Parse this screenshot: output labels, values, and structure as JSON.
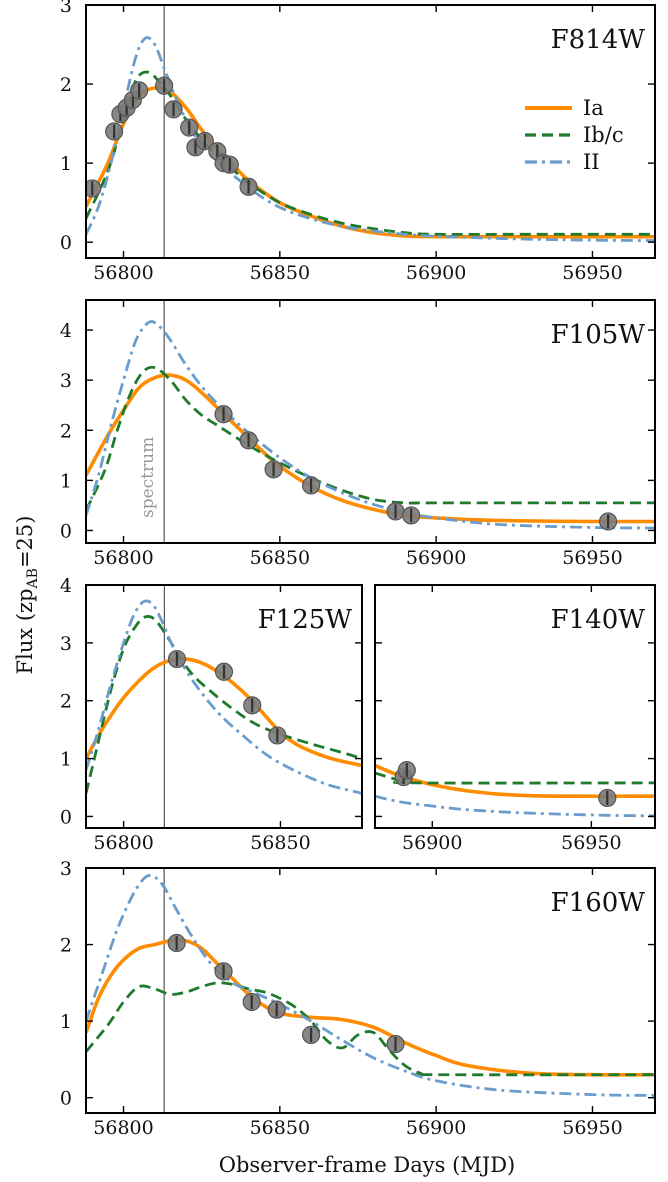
{
  "figure": {
    "ylabel_main": "Flux (zp",
    "ylabel_sub": "AB",
    "ylabel_tail": "=25)",
    "xlabel": "Observer-frame Days (MJD)",
    "spectrum_label": "spectrum",
    "spectrum_mjd": 56813,
    "legend": [
      {
        "label": "Ia",
        "color": "#ff8c00",
        "style": "solid"
      },
      {
        "label": "Ib/c",
        "color": "#1e7b2e",
        "style": "dashed"
      },
      {
        "label": "II",
        "color": "#6a9ccc",
        "style": "dashdot"
      }
    ],
    "point_color": "#7a7a7a"
  },
  "chart_data": [
    {
      "type": "line",
      "title": "F814W",
      "xlim": [
        56788,
        56970
      ],
      "ylim": [
        -0.2,
        3.0
      ],
      "xticks": [
        56800,
        56850,
        56900,
        56950
      ],
      "yticks": [
        0,
        1,
        2,
        3
      ],
      "legend": "top-right",
      "series": [
        {
          "name": "Ia",
          "x": [
            56788,
            56795,
            56800,
            56805,
            56810,
            56815,
            56820,
            56825,
            56830,
            56835,
            56840,
            56850,
            56860,
            56870,
            56880,
            56890,
            56900,
            56920,
            56940,
            56970
          ],
          "y": [
            0.45,
            1.0,
            1.5,
            1.85,
            1.95,
            1.9,
            1.7,
            1.42,
            1.18,
            0.98,
            0.78,
            0.5,
            0.33,
            0.2,
            0.12,
            0.08,
            0.07,
            0.07,
            0.07,
            0.07
          ]
        },
        {
          "name": "Ib/c",
          "x": [
            56788,
            56795,
            56800,
            56804,
            56808,
            56812,
            56816,
            56820,
            56825,
            56830,
            56835,
            56840,
            56850,
            56860,
            56870,
            56880,
            56890,
            56900,
            56930,
            56970
          ],
          "y": [
            0.3,
            0.9,
            1.55,
            2.05,
            2.15,
            2.0,
            1.8,
            1.55,
            1.3,
            1.1,
            0.92,
            0.75,
            0.5,
            0.35,
            0.24,
            0.17,
            0.12,
            0.1,
            0.1,
            0.1
          ]
        },
        {
          "name": "II",
          "x": [
            56788,
            56792,
            56796,
            56800,
            56804,
            56807,
            56810,
            56813,
            56817,
            56822,
            56828,
            56835,
            56845,
            56855,
            56870,
            56890,
            56910,
            56940,
            56970
          ],
          "y": [
            0.1,
            0.45,
            1.0,
            1.7,
            2.35,
            2.58,
            2.5,
            2.2,
            1.8,
            1.4,
            1.1,
            0.85,
            0.55,
            0.36,
            0.2,
            0.1,
            0.06,
            0.03,
            0.02
          ]
        }
      ],
      "points": {
        "x": [
          56790,
          56797,
          56799,
          56801,
          56803,
          56805,
          56813,
          56816,
          56821,
          56823,
          56826,
          56830,
          56832,
          56834,
          56840
        ],
        "y": [
          0.68,
          1.4,
          1.62,
          1.7,
          1.8,
          1.92,
          1.98,
          1.68,
          1.45,
          1.2,
          1.28,
          1.15,
          1.0,
          0.98,
          0.7
        ]
      }
    },
    {
      "type": "line",
      "title": "F105W",
      "xlim": [
        56788,
        56970
      ],
      "ylim": [
        -0.25,
        4.6
      ],
      "xticks": [
        56800,
        56850,
        56900,
        56950
      ],
      "yticks": [
        0,
        1,
        2,
        3,
        4
      ],
      "series": [
        {
          "name": "Ia",
          "x": [
            56788,
            56795,
            56800,
            56805,
            56810,
            56815,
            56820,
            56825,
            56830,
            56835,
            56840,
            56845,
            56850,
            56860,
            56870,
            56880,
            56890,
            56900,
            56920,
            56950,
            56970
          ],
          "y": [
            1.1,
            1.9,
            2.4,
            2.85,
            3.05,
            3.1,
            3.0,
            2.75,
            2.45,
            2.15,
            1.85,
            1.55,
            1.28,
            0.88,
            0.6,
            0.42,
            0.3,
            0.25,
            0.2,
            0.18,
            0.18
          ]
        },
        {
          "name": "Ib/c",
          "x": [
            56788,
            56794,
            56798,
            56802,
            56806,
            56810,
            56815,
            56820,
            56825,
            56830,
            56840,
            56850,
            56860,
            56870,
            56880,
            56890,
            56900,
            56970
          ],
          "y": [
            0.4,
            1.2,
            2.0,
            2.7,
            3.15,
            3.25,
            3.0,
            2.6,
            2.3,
            2.1,
            1.7,
            1.35,
            1.05,
            0.8,
            0.62,
            0.55,
            0.55,
            0.55
          ]
        },
        {
          "name": "II",
          "x": [
            56788,
            56792,
            56796,
            56800,
            56804,
            56808,
            56811,
            56815,
            56820,
            56826,
            56833,
            56840,
            56850,
            56860,
            56870,
            56880,
            56890,
            56900,
            56920,
            56950,
            56970
          ],
          "y": [
            0.3,
            1.1,
            2.1,
            3.0,
            3.8,
            4.15,
            4.1,
            3.8,
            3.3,
            2.8,
            2.35,
            1.95,
            1.45,
            1.05,
            0.75,
            0.52,
            0.36,
            0.25,
            0.12,
            0.06,
            0.05
          ]
        }
      ],
      "points": {
        "x": [
          56832,
          56840,
          56848,
          56860,
          56887,
          56892,
          56955
        ],
        "y": [
          2.32,
          1.8,
          1.22,
          0.9,
          0.38,
          0.3,
          0.18
        ]
      }
    },
    {
      "type": "line",
      "title": "F125W",
      "xlim": [
        56788,
        56876
      ],
      "ylim": [
        -0.2,
        4.0
      ],
      "xticks": [
        56800,
        56850
      ],
      "yticks": [
        0,
        1,
        2,
        3,
        4
      ],
      "series": [
        {
          "name": "Ia",
          "x": [
            56788,
            56792,
            56796,
            56800,
            56805,
            56810,
            56815,
            56820,
            56825,
            56830,
            56835,
            56840,
            56845,
            56850,
            56855,
            56860,
            56865,
            56870,
            56876
          ],
          "y": [
            1.0,
            1.4,
            1.75,
            2.05,
            2.35,
            2.58,
            2.7,
            2.72,
            2.65,
            2.5,
            2.3,
            2.05,
            1.75,
            1.45,
            1.25,
            1.12,
            1.02,
            0.95,
            0.88
          ]
        },
        {
          "name": "Ib/c",
          "x": [
            56788,
            56792,
            56796,
            56800,
            56804,
            56807,
            56810,
            56814,
            56818,
            56822,
            56828,
            56835,
            56842,
            56850,
            56860,
            56870,
            56876
          ],
          "y": [
            0.4,
            1.3,
            2.2,
            2.9,
            3.3,
            3.45,
            3.4,
            3.1,
            2.75,
            2.45,
            2.15,
            1.85,
            1.6,
            1.42,
            1.25,
            1.1,
            1.0
          ]
        },
        {
          "name": "II",
          "x": [
            56788,
            56792,
            56796,
            56800,
            56803,
            56806,
            56809,
            56812,
            56816,
            56822,
            56830,
            56838,
            56846,
            56855,
            56865,
            56876
          ],
          "y": [
            0.8,
            1.5,
            2.3,
            3.0,
            3.45,
            3.7,
            3.68,
            3.4,
            2.9,
            2.35,
            1.8,
            1.4,
            1.05,
            0.78,
            0.55,
            0.4
          ]
        }
      ],
      "points": {
        "x": [
          56817,
          56832,
          56841,
          56849
        ],
        "y": [
          2.72,
          2.5,
          1.92,
          1.4
        ]
      }
    },
    {
      "type": "line",
      "title": "F140W",
      "xlim": [
        56882,
        56970
      ],
      "ylim": [
        -0.2,
        4.0
      ],
      "xticks": [
        56900,
        56950
      ],
      "yticks": [
        0,
        1,
        2,
        3,
        4
      ],
      "series": [
        {
          "name": "Ia",
          "x": [
            56882,
            56890,
            56900,
            56910,
            56920,
            56930,
            56940,
            56970
          ],
          "y": [
            0.88,
            0.7,
            0.55,
            0.45,
            0.39,
            0.36,
            0.35,
            0.35
          ]
        },
        {
          "name": "Ib/c",
          "x": [
            56882,
            56890,
            56895,
            56970
          ],
          "y": [
            0.75,
            0.62,
            0.58,
            0.58
          ]
        },
        {
          "name": "II",
          "x": [
            56882,
            56890,
            56900,
            56910,
            56925,
            56940,
            56955,
            56970
          ],
          "y": [
            0.35,
            0.25,
            0.18,
            0.12,
            0.07,
            0.04,
            0.02,
            0.01
          ]
        }
      ],
      "points": {
        "x": [
          56891,
          56892,
          56955
        ],
        "y": [
          0.68,
          0.8,
          0.32
        ]
      }
    },
    {
      "type": "line",
      "title": "F160W",
      "xlim": [
        56788,
        56970
      ],
      "ylim": [
        -0.2,
        3.0
      ],
      "xticks": [
        56800,
        56850,
        56900,
        56950
      ],
      "yticks": [
        0,
        1,
        2,
        3
      ],
      "series": [
        {
          "name": "Ia",
          "x": [
            56788,
            56792,
            56796,
            56800,
            56805,
            56810,
            56815,
            56820,
            56825,
            56830,
            56835,
            56840,
            56845,
            56850,
            56860,
            56870,
            56880,
            56890,
            56900,
            56910,
            56930,
            56950,
            56970
          ],
          "y": [
            0.85,
            1.3,
            1.6,
            1.8,
            1.95,
            2.0,
            2.05,
            2.05,
            1.95,
            1.75,
            1.55,
            1.35,
            1.2,
            1.1,
            1.05,
            1.02,
            0.92,
            0.72,
            0.55,
            0.42,
            0.32,
            0.3,
            0.3
          ]
        },
        {
          "name": "Ib/c",
          "x": [
            56788,
            56795,
            56800,
            56805,
            56810,
            56815,
            56820,
            56825,
            56830,
            56835,
            56840,
            56845,
            56850,
            56855,
            56860,
            56865,
            56870,
            56875,
            56880,
            56885,
            56890,
            56895,
            56900,
            56970
          ],
          "y": [
            0.6,
            0.95,
            1.25,
            1.45,
            1.42,
            1.35,
            1.38,
            1.45,
            1.5,
            1.48,
            1.42,
            1.38,
            1.3,
            1.18,
            1.0,
            0.75,
            0.65,
            0.82,
            0.85,
            0.62,
            0.42,
            0.32,
            0.3,
            0.3
          ]
        },
        {
          "name": "II",
          "x": [
            56788,
            56793,
            56798,
            56803,
            56807,
            56810,
            56813,
            56817,
            56822,
            56828,
            56835,
            56843,
            56850,
            56860,
            56870,
            56880,
            56890,
            56900,
            56920,
            56950,
            56970
          ],
          "y": [
            1.0,
            1.6,
            2.2,
            2.65,
            2.88,
            2.88,
            2.75,
            2.45,
            2.1,
            1.75,
            1.5,
            1.35,
            1.22,
            1.0,
            0.75,
            0.52,
            0.35,
            0.22,
            0.1,
            0.04,
            0.03
          ]
        }
      ],
      "points": {
        "x": [
          56817,
          56832,
          56841,
          56849,
          56860,
          56887
        ],
        "y": [
          2.02,
          1.65,
          1.25,
          1.15,
          0.82,
          0.7
        ]
      }
    }
  ]
}
